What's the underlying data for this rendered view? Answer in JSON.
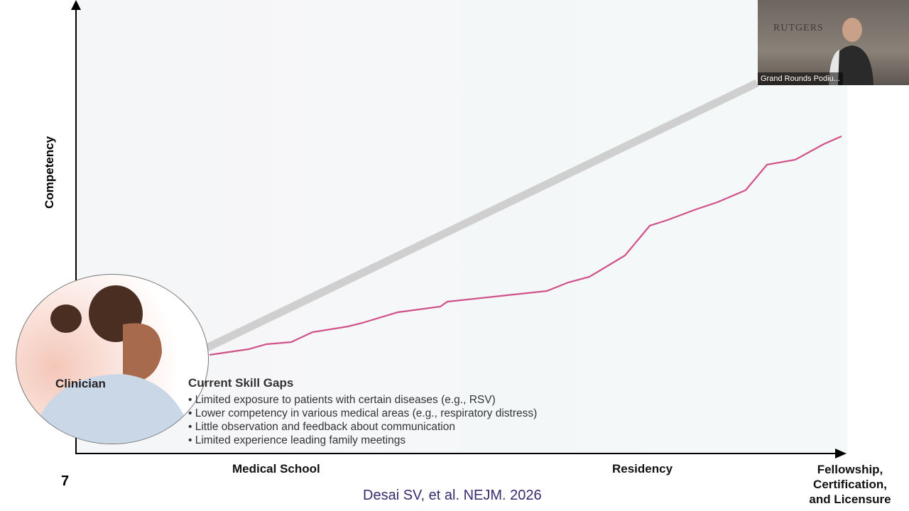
{
  "slide": {
    "y_axis_label": "Competency",
    "x_axis_labels": [
      "Medical School",
      "Residency",
      "Fellowship,\nCertification,\nand Licensure"
    ],
    "figure_label": "Clinician",
    "skill_gaps": {
      "title": "Current Skill Gaps",
      "items": [
        "Limited exposure to patients with certain diseases (e.g., RSV)",
        "Lower competency in various medical areas (e.g., respiratory distress)",
        "Little observation and feedback about communication",
        "Limited experience leading family meetings"
      ]
    },
    "page_number": "7",
    "citation": "Desai SV, et al. NEJM. 2026",
    "colors": {
      "competency_line": "#d0508a",
      "ideal_band": "#cfcfcf",
      "citation": "#3a2a6e"
    }
  },
  "video": {
    "participant_name": "Grand Rounds Podiu...",
    "background_sign": "RUTGERS"
  }
}
